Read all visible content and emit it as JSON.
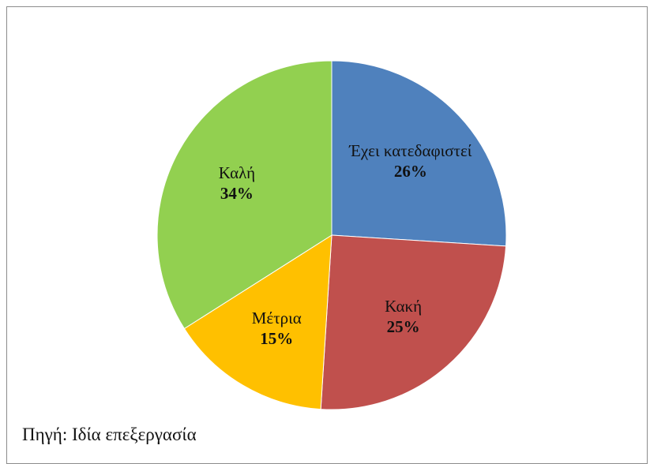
{
  "chart_data": {
    "type": "pie",
    "categories": [
      "Έχει κατεδαφιστεί",
      "Κακή",
      "Μέτρια",
      "Καλή"
    ],
    "values": [
      26,
      25,
      15,
      34
    ],
    "value_labels": [
      "26%",
      "25%",
      "15%",
      "34%"
    ],
    "colors": [
      "#4f81bd",
      "#c0504d",
      "#ffc000",
      "#92d050"
    ],
    "source": "Πηγή: Ιδία επεξεργασία"
  }
}
